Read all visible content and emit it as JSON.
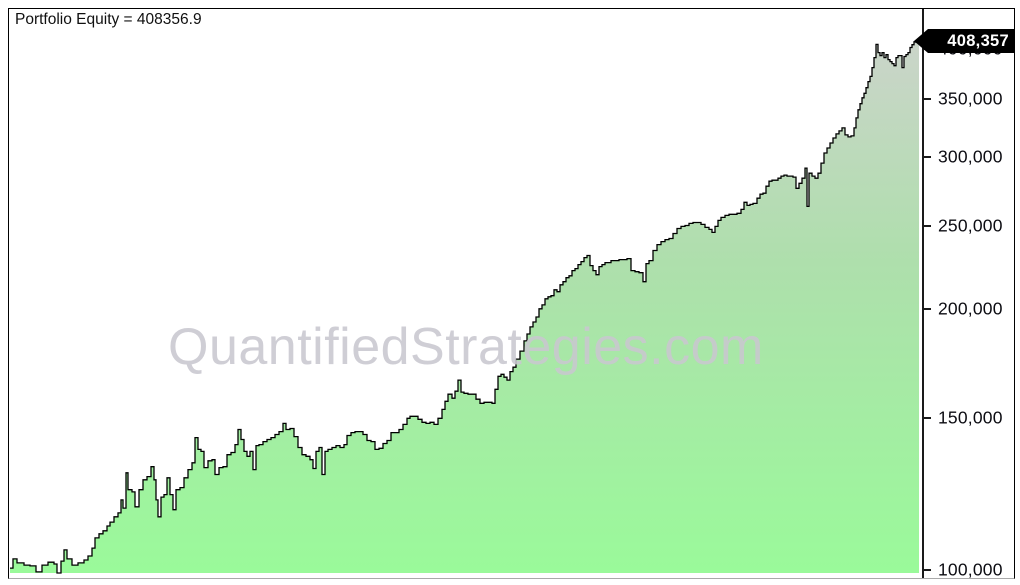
{
  "header": {
    "title": "Portfolio Equity = 408356.9"
  },
  "watermark": {
    "text": "QuantifiedStrategies.com"
  },
  "y_axis": {
    "ticks": [
      {
        "label": "400,000",
        "value": 400000
      },
      {
        "label": "350,000",
        "value": 350000
      },
      {
        "label": "300,000",
        "value": 300000
      },
      {
        "label": "250,000",
        "value": 250000
      },
      {
        "label": "200,000",
        "value": 200000
      },
      {
        "label": "150,000",
        "value": 150000
      },
      {
        "label": "100,000",
        "value": 100000
      }
    ],
    "last_value_tag": {
      "label": "408,357",
      "value": 408356.9
    }
  },
  "colors": {
    "line": "#000000",
    "fill_top": "#CFD3CE",
    "fill_mid": "#AEDFAC",
    "fill_bottom": "#9AFA9A",
    "tag_bg": "#000000",
    "tag_text": "#ffffff",
    "watermark": "#C8C7CF",
    "frame_border": "#000000"
  },
  "chart_data": {
    "type": "area",
    "title": "Portfolio Equity = 408356.9",
    "ylabel": "",
    "xlabel": "",
    "y_scale": "log",
    "ylim": [
      97000,
      432000
    ],
    "grid": false,
    "legend": "none",
    "start_equity": 100000,
    "final_equity": 408356.9,
    "y_tick_values": [
      100000,
      150000,
      200000,
      250000,
      300000,
      350000,
      400000
    ],
    "points": [
      [
        10,
        100500
      ],
      [
        13,
        103000
      ],
      [
        17,
        101900
      ],
      [
        24,
        101300
      ],
      [
        30,
        101100
      ],
      [
        36,
        99500
      ],
      [
        42,
        101300
      ],
      [
        48,
        102100
      ],
      [
        54,
        101600
      ],
      [
        57,
        99200
      ],
      [
        61,
        102400
      ],
      [
        64,
        105500
      ],
      [
        67,
        103000
      ],
      [
        72,
        101300
      ],
      [
        78,
        101900
      ],
      [
        84,
        102700
      ],
      [
        88,
        103800
      ],
      [
        92,
        106000
      ],
      [
        95,
        108900
      ],
      [
        99,
        110100
      ],
      [
        103,
        111000
      ],
      [
        107,
        112400
      ],
      [
        110,
        113600
      ],
      [
        114,
        115200
      ],
      [
        118,
        116400
      ],
      [
        121,
        120500
      ],
      [
        123,
        117900
      ],
      [
        126,
        129500
      ],
      [
        128,
        123800
      ],
      [
        132,
        123100
      ],
      [
        135,
        118300
      ],
      [
        139,
        123800
      ],
      [
        143,
        127100
      ],
      [
        147,
        128200
      ],
      [
        151,
        131600
      ],
      [
        154,
        127100
      ],
      [
        156,
        120500
      ],
      [
        158,
        115200
      ],
      [
        161,
        121400
      ],
      [
        164,
        122200
      ],
      [
        167,
        127800
      ],
      [
        170,
        122200
      ],
      [
        173,
        117400
      ],
      [
        176,
        123800
      ],
      [
        180,
        124500
      ],
      [
        184,
        127800
      ],
      [
        188,
        130600
      ],
      [
        192,
        133000
      ],
      [
        195,
        142200
      ],
      [
        198,
        137800
      ],
      [
        201,
        137100
      ],
      [
        204,
        131300
      ],
      [
        208,
        133700
      ],
      [
        212,
        134100
      ],
      [
        215,
        128900
      ],
      [
        219,
        131300
      ],
      [
        223,
        131600
      ],
      [
        227,
        135900
      ],
      [
        231,
        136700
      ],
      [
        235,
        139600
      ],
      [
        238,
        145300
      ],
      [
        241,
        141500
      ],
      [
        244,
        137100
      ],
      [
        247,
        135300
      ],
      [
        250,
        137100
      ],
      [
        253,
        130600
      ],
      [
        256,
        139200
      ],
      [
        259,
        139600
      ],
      [
        263,
        140700
      ],
      [
        267,
        141500
      ],
      [
        271,
        142200
      ],
      [
        275,
        143400
      ],
      [
        279,
        144500
      ],
      [
        283,
        147700
      ],
      [
        286,
        145300
      ],
      [
        290,
        145700
      ],
      [
        294,
        142600
      ],
      [
        298,
        138500
      ],
      [
        302,
        135900
      ],
      [
        306,
        135300
      ],
      [
        310,
        134100
      ],
      [
        313,
        131000
      ],
      [
        316,
        137100
      ],
      [
        319,
        138500
      ],
      [
        322,
        128900
      ],
      [
        325,
        137100
      ],
      [
        328,
        137800
      ],
      [
        332,
        138500
      ],
      [
        336,
        139200
      ],
      [
        340,
        138500
      ],
      [
        344,
        139600
      ],
      [
        347,
        143000
      ],
      [
        351,
        144100
      ],
      [
        355,
        144500
      ],
      [
        359,
        144500
      ],
      [
        363,
        143400
      ],
      [
        367,
        141100
      ],
      [
        371,
        140700
      ],
      [
        375,
        137800
      ],
      [
        379,
        138200
      ],
      [
        383,
        140000
      ],
      [
        387,
        141100
      ],
      [
        391,
        144100
      ],
      [
        395,
        144100
      ],
      [
        399,
        145300
      ],
      [
        403,
        147300
      ],
      [
        407,
        149700
      ],
      [
        410,
        150500
      ],
      [
        414,
        150500
      ],
      [
        418,
        149300
      ],
      [
        422,
        148100
      ],
      [
        426,
        147700
      ],
      [
        430,
        148100
      ],
      [
        434,
        147300
      ],
      [
        438,
        149700
      ],
      [
        442,
        153300
      ],
      [
        445,
        156600
      ],
      [
        448,
        159600
      ],
      [
        452,
        157900
      ],
      [
        455,
        160900
      ],
      [
        458,
        165700
      ],
      [
        461,
        160500
      ],
      [
        464,
        160000
      ],
      [
        468,
        159600
      ],
      [
        472,
        159600
      ],
      [
        476,
        157500
      ],
      [
        480,
        155800
      ],
      [
        484,
        156200
      ],
      [
        488,
        156200
      ],
      [
        492,
        155800
      ],
      [
        495,
        161700
      ],
      [
        498,
        167400
      ],
      [
        501,
        168300
      ],
      [
        504,
        167000
      ],
      [
        507,
        165700
      ],
      [
        510,
        169500
      ],
      [
        513,
        171500
      ],
      [
        516,
        175200
      ],
      [
        520,
        179000
      ],
      [
        524,
        183900
      ],
      [
        527,
        187300
      ],
      [
        530,
        190900
      ],
      [
        533,
        193400
      ],
      [
        536,
        196000
      ],
      [
        539,
        200300
      ],
      [
        542,
        202400
      ],
      [
        545,
        205700
      ],
      [
        548,
        206800
      ],
      [
        551,
        207400
      ],
      [
        554,
        210700
      ],
      [
        557,
        209600
      ],
      [
        560,
        213500
      ],
      [
        563,
        215300
      ],
      [
        566,
        217600
      ],
      [
        569,
        218700
      ],
      [
        572,
        221700
      ],
      [
        575,
        222900
      ],
      [
        578,
        225300
      ],
      [
        581,
        227100
      ],
      [
        584,
        229500
      ],
      [
        587,
        230800
      ],
      [
        590,
        224700
      ],
      [
        593,
        221700
      ],
      [
        596,
        219300
      ],
      [
        599,
        224100
      ],
      [
        602,
        225300
      ],
      [
        605,
        226500
      ],
      [
        608,
        226500
      ],
      [
        611,
        227700
      ],
      [
        615,
        227700
      ],
      [
        619,
        228300
      ],
      [
        623,
        228300
      ],
      [
        627,
        228900
      ],
      [
        631,
        221700
      ],
      [
        635,
        221100
      ],
      [
        639,
        220500
      ],
      [
        643,
        215300
      ],
      [
        646,
        225900
      ],
      [
        649,
        227700
      ],
      [
        653,
        233900
      ],
      [
        657,
        237600
      ],
      [
        661,
        239500
      ],
      [
        665,
        240800
      ],
      [
        669,
        241500
      ],
      [
        673,
        244700
      ],
      [
        677,
        248000
      ],
      [
        681,
        249400
      ],
      [
        685,
        250000
      ],
      [
        689,
        251400
      ],
      [
        693,
        252000
      ],
      [
        697,
        252000
      ],
      [
        701,
        250700
      ],
      [
        705,
        248700
      ],
      [
        709,
        247400
      ],
      [
        712,
        245400
      ],
      [
        715,
        249400
      ],
      [
        718,
        253400
      ],
      [
        721,
        255400
      ],
      [
        725,
        256800
      ],
      [
        729,
        257500
      ],
      [
        733,
        257500
      ],
      [
        737,
        258200
      ],
      [
        741,
        260900
      ],
      [
        744,
        265900
      ],
      [
        747,
        263700
      ],
      [
        750,
        264400
      ],
      [
        753,
        265100
      ],
      [
        757,
        268800
      ],
      [
        760,
        271700
      ],
      [
        763,
        272400
      ],
      [
        766,
        277500
      ],
      [
        769,
        281200
      ],
      [
        772,
        282000
      ],
      [
        775,
        282000
      ],
      [
        778,
        283500
      ],
      [
        781,
        285100
      ],
      [
        784,
        285800
      ],
      [
        787,
        285100
      ],
      [
        790,
        285100
      ],
      [
        793,
        284300
      ],
      [
        796,
        276000
      ],
      [
        799,
        279700
      ],
      [
        802,
        283500
      ],
      [
        805,
        291200
      ],
      [
        807,
        263000
      ],
      [
        809,
        287300
      ],
      [
        812,
        285100
      ],
      [
        815,
        283500
      ],
      [
        818,
        287300
      ],
      [
        821,
        295100
      ],
      [
        824,
        303100
      ],
      [
        827,
        307200
      ],
      [
        830,
        311300
      ],
      [
        833,
        315500
      ],
      [
        836,
        318900
      ],
      [
        839,
        321500
      ],
      [
        842,
        324100
      ],
      [
        845,
        318100
      ],
      [
        848,
        316400
      ],
      [
        851,
        317200
      ],
      [
        854,
        324100
      ],
      [
        856,
        332800
      ],
      [
        858,
        340000
      ],
      [
        860,
        345600
      ],
      [
        862,
        351100
      ],
      [
        864,
        355300
      ],
      [
        866,
        360600
      ],
      [
        868,
        366500
      ],
      [
        870,
        371600
      ],
      [
        872,
        380400
      ],
      [
        874,
        390700
      ],
      [
        876,
        404600
      ],
      [
        878,
        395900
      ],
      [
        880,
        392800
      ],
      [
        882,
        395900
      ],
      [
        884,
        390700
      ],
      [
        886,
        393800
      ],
      [
        888,
        388600
      ],
      [
        890,
        386500
      ],
      [
        892,
        384500
      ],
      [
        894,
        382400
      ],
      [
        896,
        390700
      ],
      [
        898,
        392800
      ],
      [
        900,
        392800
      ],
      [
        902,
        380400
      ],
      [
        904,
        391800
      ],
      [
        906,
        393800
      ],
      [
        908,
        395900
      ],
      [
        910,
        401300
      ],
      [
        912,
        404300
      ],
      [
        914,
        407500
      ],
      [
        916,
        407000
      ],
      [
        919,
        408357
      ]
    ]
  }
}
